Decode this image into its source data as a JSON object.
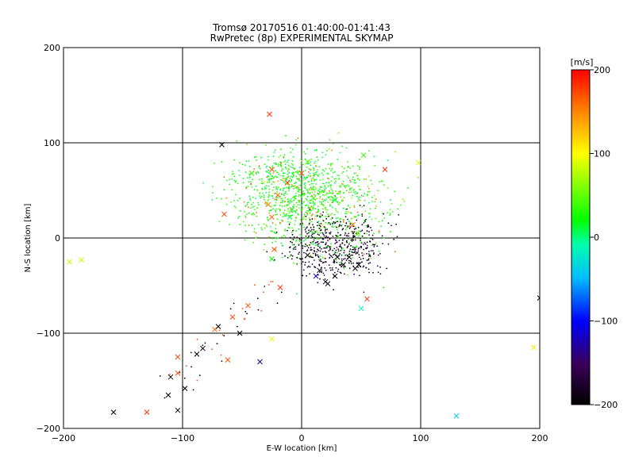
{
  "chart_data": {
    "type": "scatter",
    "title": "Tromsø 20170516 01:40:00-01:41:43",
    "subtitle": "RwPretec (8p) EXPERIMENTAL SKYMAP",
    "xlabel": "E-W location [km]",
    "ylabel": "N-S location [km]",
    "xlim": [
      -200,
      200
    ],
    "ylim": [
      -200,
      200
    ],
    "x_ticks": [
      -200,
      -100,
      0,
      100,
      200
    ],
    "y_ticks": [
      -200,
      -100,
      0,
      100,
      200
    ],
    "x_tick_labels": [
      "−200",
      "−100",
      "0",
      "100",
      "200"
    ],
    "y_tick_labels": [
      "−200",
      "−100",
      "0",
      "100",
      "200"
    ],
    "grid": true,
    "colorbar": {
      "label": "[m/s]",
      "range": [
        -200,
        200
      ],
      "ticks": [
        200,
        100,
        0,
        -100,
        -200
      ],
      "tick_labels": [
        "200",
        "100",
        "0",
        "−100",
        "−200"
      ],
      "colors": [
        "#000000",
        "#3a0058",
        "#0000ff",
        "#00ffff",
        "#00ff00",
        "#ffff00",
        "#ff0000"
      ]
    },
    "crosses": [
      {
        "x": -27,
        "y": 130,
        "v": 180
      },
      {
        "x": -67,
        "y": 98,
        "v": -200
      },
      {
        "x": -65,
        "y": 25,
        "v": 170
      },
      {
        "x": -20,
        "y": 45,
        "v": 160
      },
      {
        "x": -28,
        "y": 35,
        "v": 150
      },
      {
        "x": -25,
        "y": 22,
        "v": 160
      },
      {
        "x": -25,
        "y": 72,
        "v": 170
      },
      {
        "x": -12,
        "y": 58,
        "v": 180
      },
      {
        "x": 0,
        "y": 68,
        "v": 170
      },
      {
        "x": 70,
        "y": 72,
        "v": 180
      },
      {
        "x": 98,
        "y": 79,
        "v": 90
      },
      {
        "x": 52,
        "y": 87,
        "v": 40
      },
      {
        "x": -42,
        "y": 68,
        "v": 30
      },
      {
        "x": 5,
        "y": 80,
        "v": 40
      },
      {
        "x": -8,
        "y": 30,
        "v": 20
      },
      {
        "x": 10,
        "y": 42,
        "v": 40
      },
      {
        "x": 28,
        "y": 40,
        "v": 10
      },
      {
        "x": 43,
        "y": 14,
        "v": 160
      },
      {
        "x": 47,
        "y": 5,
        "v": 60
      },
      {
        "x": -23,
        "y": -12,
        "v": 170
      },
      {
        "x": -18,
        "y": -52,
        "v": 180
      },
      {
        "x": -25,
        "y": -22,
        "v": 20
      },
      {
        "x": -195,
        "y": -25,
        "v": 80
      },
      {
        "x": -185,
        "y": -23,
        "v": 80
      },
      {
        "x": -10,
        "y": 22,
        "v": 10
      },
      {
        "x": 40,
        "y": -20,
        "v": -200
      },
      {
        "x": 35,
        "y": -28,
        "v": -200
      },
      {
        "x": 45,
        "y": -32,
        "v": -200
      },
      {
        "x": 22,
        "y": -48,
        "v": -180
      },
      {
        "x": 20,
        "y": -46,
        "v": -200
      },
      {
        "x": 30,
        "y": -20,
        "v": -200
      },
      {
        "x": 15,
        "y": -34,
        "v": -200
      },
      {
        "x": 12,
        "y": -40,
        "v": -120
      },
      {
        "x": 28,
        "y": -40,
        "v": -200
      },
      {
        "x": 48,
        "y": -28,
        "v": -200
      },
      {
        "x": 5,
        "y": -18,
        "v": -200
      },
      {
        "x": 55,
        "y": -64,
        "v": 180
      },
      {
        "x": 50,
        "y": -74,
        "v": -20
      },
      {
        "x": -45,
        "y": -71,
        "v": 170
      },
      {
        "x": -58,
        "y": -83,
        "v": 170
      },
      {
        "x": -70,
        "y": -93,
        "v": -200
      },
      {
        "x": -73,
        "y": -96,
        "v": 160
      },
      {
        "x": -52,
        "y": -100,
        "v": -200
      },
      {
        "x": -25,
        "y": -106,
        "v": 90
      },
      {
        "x": -35,
        "y": -130,
        "v": -130
      },
      {
        "x": -62,
        "y": -128,
        "v": 170
      },
      {
        "x": -83,
        "y": -116,
        "v": -200
      },
      {
        "x": -88,
        "y": -122,
        "v": -200
      },
      {
        "x": -104,
        "y": -125,
        "v": 170
      },
      {
        "x": -104,
        "y": -142,
        "v": 170
      },
      {
        "x": -110,
        "y": -146,
        "v": -200
      },
      {
        "x": -98,
        "y": -158,
        "v": -200
      },
      {
        "x": -112,
        "y": -165,
        "v": -200
      },
      {
        "x": -104,
        "y": -181,
        "v": -200
      },
      {
        "x": -130,
        "y": -183,
        "v": 180
      },
      {
        "x": -158,
        "y": -183,
        "v": -200
      },
      {
        "x": 130,
        "y": -187,
        "v": -40
      },
      {
        "x": 195,
        "y": -115,
        "v": 110
      },
      {
        "x": 200,
        "y": -63,
        "v": -200
      }
    ]
  }
}
